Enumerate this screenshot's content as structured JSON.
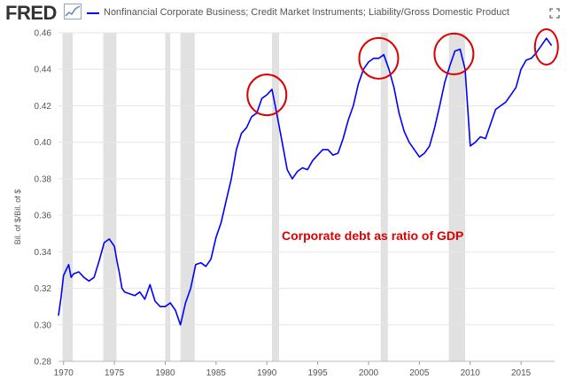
{
  "header": {
    "logo": "FRED",
    "series_title": "Nonfinancial Corporate Business; Credit Market Instruments; Liability/Gross Domestic Product"
  },
  "colors": {
    "series": "#0000ff",
    "recession": "#e1e1e1",
    "grid": "#e6e6e6",
    "annotation": "#dd0000",
    "circle": "#dd0000"
  },
  "icons": {
    "expand": "expand-icon",
    "logo_chart": "trend-chart-icon"
  },
  "chart_data": {
    "type": "line",
    "title": "Nonfinancial Corporate Business; Credit Market Instruments; Liability/Gross Domestic Product",
    "xlabel": "",
    "ylabel": "Bil. of $/Bil. of $",
    "xlim": [
      1969.5,
      2018.3
    ],
    "ylim": [
      0.28,
      0.46
    ],
    "grid": true,
    "legend": "top-left",
    "x_ticks": [
      "1970",
      "1975",
      "1980",
      "1985",
      "1990",
      "1995",
      "2000",
      "2005",
      "2010",
      "2015"
    ],
    "y_ticks": [
      "0.28",
      "0.30",
      "0.32",
      "0.34",
      "0.36",
      "0.38",
      "0.40",
      "0.42",
      "0.44",
      "0.46"
    ],
    "recessions": [
      [
        1969.9,
        1970.9
      ],
      [
        1973.9,
        1975.2
      ],
      [
        1980.0,
        1980.5
      ],
      [
        1981.5,
        1982.9
      ],
      [
        1990.5,
        1991.2
      ],
      [
        2001.2,
        2001.9
      ],
      [
        2007.9,
        2009.5
      ]
    ],
    "annotation": "Corporate debt as ratio of GDP",
    "highlight_years": [
      1990.0,
      2001.0,
      2008.4,
      2017.5
    ],
    "series": [
      {
        "name": "Nonfinancial Corporate Business; Credit Market Instruments; Liability/Gross Domestic Product",
        "x": [
          1969.5,
          1969.75,
          1970.0,
          1970.25,
          1970.5,
          1970.75,
          1971.0,
          1971.5,
          1972.0,
          1972.5,
          1973.0,
          1973.5,
          1974.0,
          1974.5,
          1975.0,
          1975.25,
          1975.5,
          1975.75,
          1976.0,
          1976.5,
          1977.0,
          1977.5,
          1978.0,
          1978.5,
          1979.0,
          1979.5,
          1980.0,
          1980.5,
          1981.0,
          1981.25,
          1981.5,
          1982.0,
          1982.5,
          1983.0,
          1983.5,
          1984.0,
          1984.5,
          1985.0,
          1985.5,
          1986.0,
          1986.5,
          1987.0,
          1987.5,
          1988.0,
          1988.5,
          1989.0,
          1989.5,
          1990.0,
          1990.5,
          1991.0,
          1991.5,
          1992.0,
          1992.5,
          1993.0,
          1993.5,
          1994.0,
          1994.5,
          1995.0,
          1995.5,
          1996.0,
          1996.5,
          1997.0,
          1997.5,
          1998.0,
          1998.5,
          1999.0,
          1999.5,
          2000.0,
          2000.5,
          2001.0,
          2001.5,
          2002.0,
          2002.5,
          2003.0,
          2003.5,
          2004.0,
          2004.5,
          2005.0,
          2005.5,
          2006.0,
          2006.5,
          2007.0,
          2007.5,
          2008.0,
          2008.5,
          2009.0,
          2009.5,
          2010.0,
          2010.5,
          2011.0,
          2011.5,
          2012.0,
          2012.5,
          2013.0,
          2013.5,
          2014.0,
          2014.5,
          2015.0,
          2015.5,
          2016.0,
          2016.5,
          2017.0,
          2017.5,
          2018.0
        ],
        "values": [
          0.305,
          0.315,
          0.327,
          0.33,
          0.333,
          0.326,
          0.328,
          0.329,
          0.326,
          0.324,
          0.326,
          0.335,
          0.345,
          0.347,
          0.343,
          0.335,
          0.328,
          0.32,
          0.318,
          0.317,
          0.316,
          0.318,
          0.314,
          0.322,
          0.313,
          0.31,
          0.31,
          0.312,
          0.308,
          0.304,
          0.3,
          0.312,
          0.32,
          0.333,
          0.334,
          0.332,
          0.336,
          0.348,
          0.356,
          0.368,
          0.38,
          0.396,
          0.405,
          0.408,
          0.414,
          0.416,
          0.424,
          0.426,
          0.429,
          0.415,
          0.4,
          0.385,
          0.38,
          0.384,
          0.386,
          0.385,
          0.39,
          0.393,
          0.396,
          0.396,
          0.393,
          0.394,
          0.402,
          0.412,
          0.42,
          0.432,
          0.44,
          0.444,
          0.446,
          0.446,
          0.448,
          0.44,
          0.43,
          0.416,
          0.406,
          0.4,
          0.396,
          0.392,
          0.394,
          0.398,
          0.408,
          0.42,
          0.433,
          0.442,
          0.45,
          0.451,
          0.44,
          0.398,
          0.4,
          0.403,
          0.402,
          0.41,
          0.418,
          0.42,
          0.422,
          0.426,
          0.43,
          0.44,
          0.445,
          0.446,
          0.449,
          0.453,
          0.457,
          0.453
        ]
      }
    ]
  }
}
